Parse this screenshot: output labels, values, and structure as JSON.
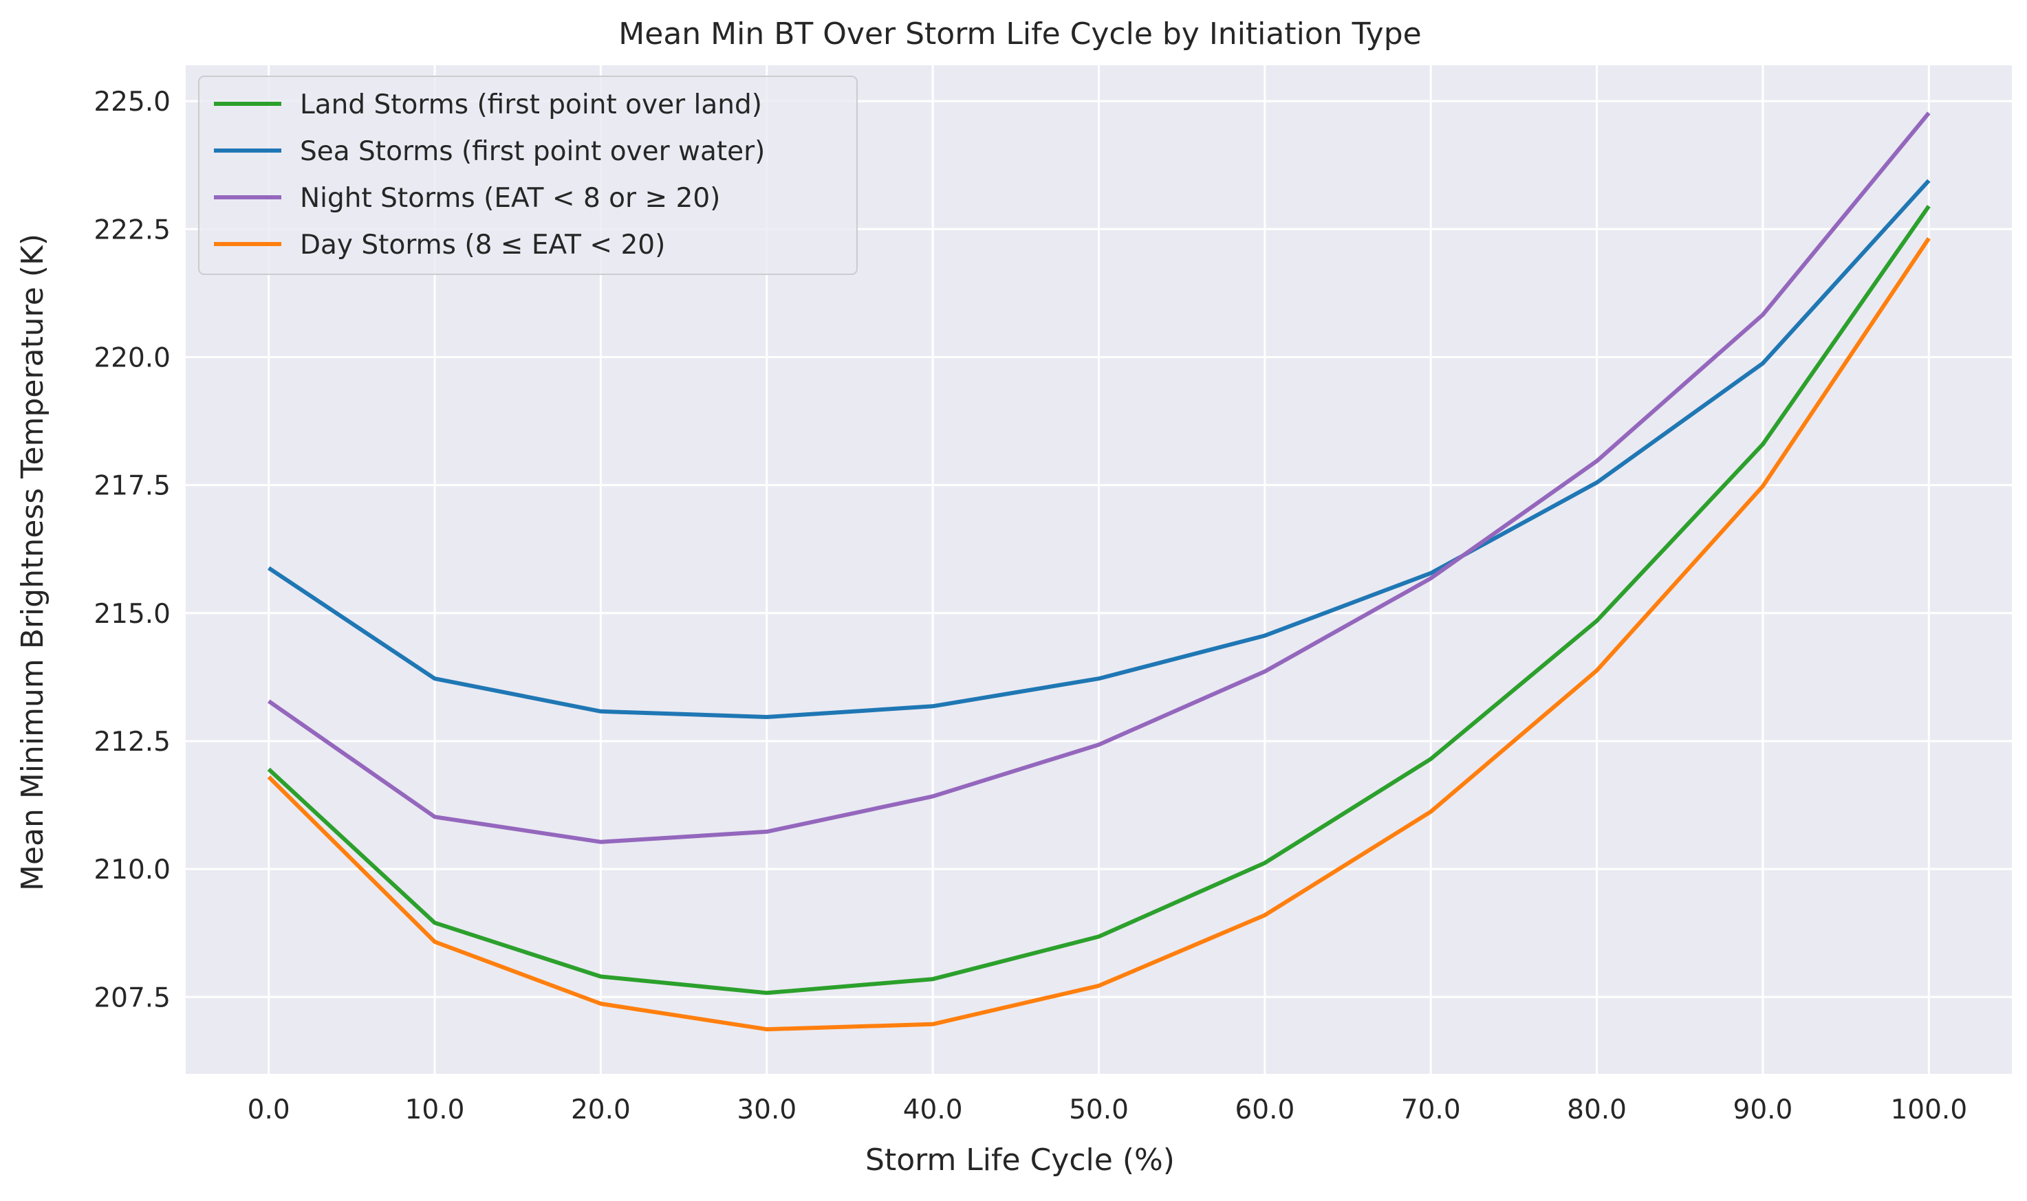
{
  "chart_data": {
    "type": "line",
    "title": "Mean Min BT Over Storm Life Cycle by Initiation Type",
    "xlabel": "Storm Life Cycle (%)",
    "ylabel": "Mean Minimum Brightness Temperature (K)",
    "x": [
      0,
      10,
      20,
      30,
      40,
      50,
      60,
      70,
      80,
      90,
      100
    ],
    "x_tick_labels": [
      "0.0",
      "10.0",
      "20.0",
      "30.0",
      "40.0",
      "50.0",
      "60.0",
      "70.0",
      "80.0",
      "90.0",
      "100.0"
    ],
    "y_ticks": [
      207.5,
      210.0,
      212.5,
      215.0,
      217.5,
      220.0,
      222.5,
      225.0
    ],
    "y_tick_labels": [
      "207.5",
      "210.0",
      "212.5",
      "215.0",
      "217.5",
      "220.0",
      "222.5",
      "225.0"
    ],
    "xlim": [
      -5,
      105
    ],
    "ylim": [
      206.0,
      225.7
    ],
    "grid": true,
    "legend_position": "top-left",
    "background_color": "#eaeaf2",
    "series": [
      {
        "name": "Land Storms (first point over land)",
        "color": "#2ca02c",
        "values": [
          211.95,
          208.95,
          207.9,
          207.58,
          207.85,
          208.68,
          210.12,
          212.15,
          214.85,
          218.3,
          222.95
        ]
      },
      {
        "name": "Sea Storms (first point over water)",
        "color": "#1f77b4",
        "values": [
          215.88,
          213.72,
          213.08,
          212.97,
          213.18,
          213.72,
          214.56,
          215.78,
          217.55,
          219.88,
          223.45
        ]
      },
      {
        "name": "Night Storms (EAT < 8 or ≥ 20)",
        "color": "#9467bd",
        "values": [
          213.28,
          211.02,
          210.53,
          210.73,
          211.42,
          212.43,
          213.86,
          215.68,
          217.97,
          220.83,
          224.77
        ]
      },
      {
        "name": "Day Storms (8 ≤ EAT < 20)",
        "color": "#ff7f0e",
        "values": [
          211.8,
          208.58,
          207.37,
          206.87,
          206.97,
          207.72,
          209.1,
          211.12,
          213.88,
          217.48,
          222.32
        ]
      }
    ]
  }
}
